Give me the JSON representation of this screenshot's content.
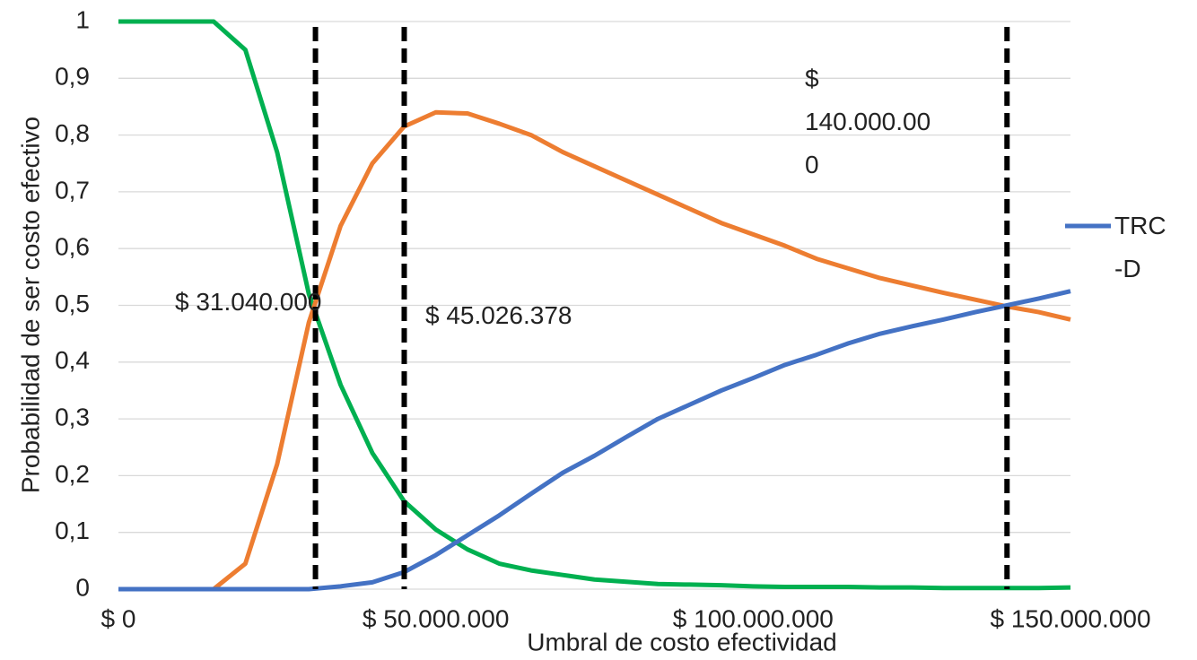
{
  "chart_data": {
    "type": "line",
    "y_label": "Probabilidad de ser costo efectivo",
    "x_label": "Umbral de costo efectividad",
    "x": [
      0,
      5000000,
      10000000,
      15000000,
      20000000,
      25000000,
      30000000,
      35000000,
      40000000,
      45000000,
      50000000,
      55000000,
      60000000,
      65000000,
      70000000,
      75000000,
      80000000,
      85000000,
      90000000,
      95000000,
      100000000,
      105000000,
      110000000,
      115000000,
      120000000,
      125000000,
      130000000,
      135000000,
      140000000,
      145000000,
      150000000
    ],
    "series": [
      {
        "name": "TRC -D",
        "color": "#4472c4",
        "values": [
          0,
          0,
          0,
          0,
          0,
          0,
          0,
          0.005,
          0.012,
          0.03,
          0.06,
          0.095,
          0.13,
          0.168,
          0.205,
          0.235,
          0.268,
          0.3,
          0.325,
          0.35,
          0.372,
          0.395,
          0.413,
          0.433,
          0.45,
          0.463,
          0.475,
          0.488,
          0.5,
          0.512,
          0.525
        ]
      },
      {
        "color": "#ed7d31",
        "values": [
          0,
          0,
          0,
          0,
          0.045,
          0.22,
          0.47,
          0.64,
          0.75,
          0.815,
          0.84,
          0.838,
          0.82,
          0.8,
          0.77,
          0.745,
          0.72,
          0.695,
          0.67,
          0.645,
          0.625,
          0.605,
          0.582,
          0.565,
          0.548,
          0.535,
          0.522,
          0.51,
          0.498,
          0.488,
          0.475
        ]
      },
      {
        "color": "#00b050",
        "values": [
          1,
          1,
          1,
          1,
          0.95,
          0.77,
          0.52,
          0.36,
          0.24,
          0.155,
          0.105,
          0.07,
          0.045,
          0.033,
          0.025,
          0.017,
          0.013,
          0.009,
          0.008,
          0.007,
          0.005,
          0.004,
          0.004,
          0.004,
          0.003,
          0.003,
          0.002,
          0.002,
          0.002,
          0.002,
          0.003
        ]
      }
    ],
    "xlim": [
      0,
      150000000
    ],
    "xticks": [
      {
        "value": 0,
        "label": "$ 0"
      },
      {
        "value": 50000000,
        "label": "$ 50.000.000"
      },
      {
        "value": 100000000,
        "label": "$ 100.000.000"
      },
      {
        "value": 150000000,
        "label": "$ 150.000.000"
      }
    ],
    "ylim": [
      0,
      1
    ],
    "yticks": [
      0,
      {
        "value": 0.1,
        "label": "0,1"
      },
      {
        "value": 0.2,
        "label": "0,2"
      },
      {
        "value": 0.3,
        "label": "0,3"
      },
      {
        "value": 0.4,
        "label": "0,4"
      },
      {
        "value": 0.5,
        "label": "0,5"
      },
      {
        "value": 0.6,
        "label": "0,6"
      },
      {
        "value": 0.7,
        "label": "0,7"
      },
      {
        "value": 0.8,
        "label": "0,8"
      },
      {
        "value": 0.9,
        "label": "0,9"
      },
      1
    ],
    "grid": true,
    "legend": "right",
    "vlines": [
      {
        "x": 31040000,
        "label": "$ 31.040.000"
      },
      {
        "x": 45026378,
        "label": "$ 45.026.378"
      },
      {
        "x": 140000000,
        "label": "$ 140.000.000"
      }
    ]
  }
}
